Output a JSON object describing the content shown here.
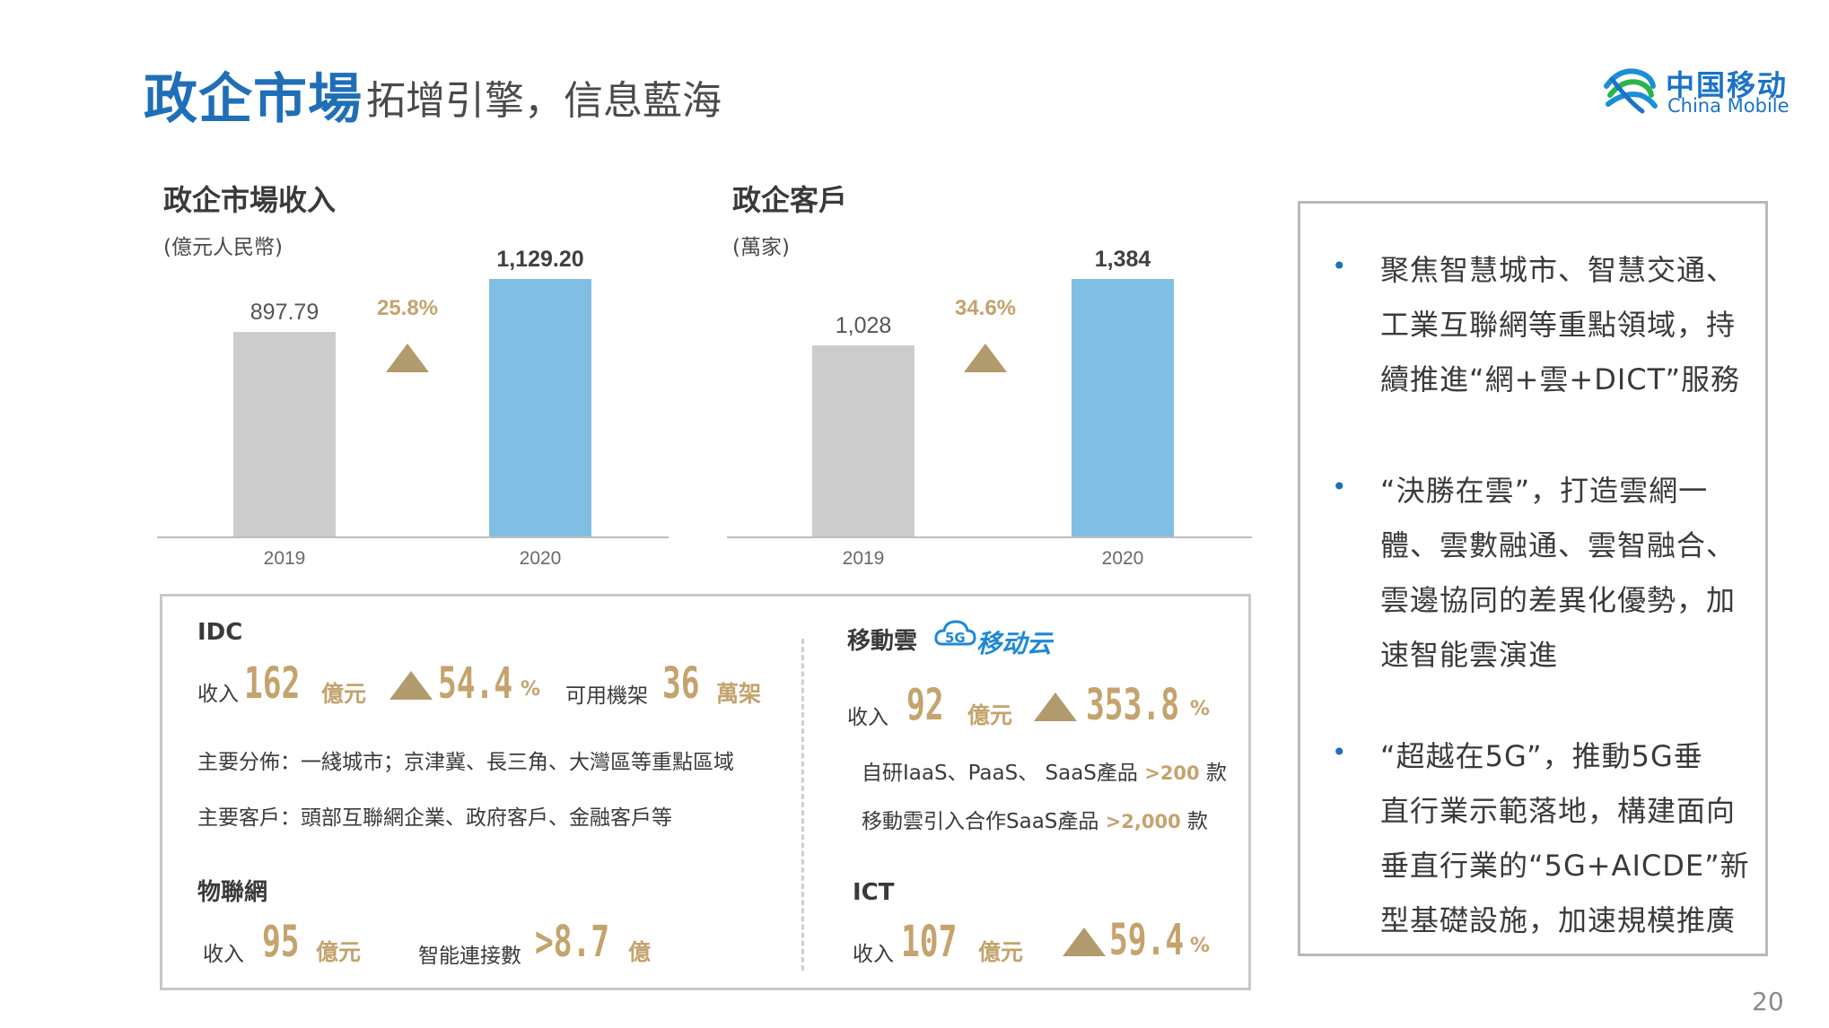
{
  "header": {
    "title_main": "政企市場",
    "title_sub": "拓增引擎，信息藍海",
    "logo_cn": "中国移动",
    "logo_en": "China Mobile"
  },
  "charts": {
    "revenue": {
      "title": "政企市場收入",
      "unit": "(億元人民幣)"
    },
    "customers": {
      "title": "政企客戶",
      "unit": "(萬家)"
    }
  },
  "chart_data": [
    {
      "type": "bar",
      "title": "政企市場收入",
      "ylabel": "(億元人民幣)",
      "categories": [
        "2019",
        "2020"
      ],
      "values": [
        897.79,
        1129.2
      ],
      "value_labels": [
        "897.79",
        "1,129.20"
      ],
      "growth_label": "25.8%",
      "bar_colors": [
        "#cccccc",
        "#80bfe3"
      ],
      "ylim": [
        0,
        1129.2
      ]
    },
    {
      "type": "bar",
      "title": "政企客戶",
      "ylabel": "(萬家)",
      "categories": [
        "2019",
        "2020"
      ],
      "values": [
        1028,
        1384
      ],
      "value_labels": [
        "1,028",
        "1,384"
      ],
      "growth_label": "34.6%",
      "bar_colors": [
        "#cccccc",
        "#80bfe3"
      ],
      "ylim": [
        0,
        1384
      ]
    }
  ],
  "right_panel": {
    "bullets": [
      {
        "lines": [
          "聚焦智慧城市、智慧交通、",
          "工業互聯網等重點領域，持",
          "續推進“網+雲+DICT”服務"
        ]
      },
      {
        "lines": [
          "“決勝在雲”，打造雲網一",
          "體、雲數融通、雲智融合、",
          "雲邊協同的差異化優勢，加",
          "速智能雲演進"
        ]
      },
      {
        "lines": [
          "“超越在5G”，推動5G垂",
          "直行業示範落地，構建面向",
          "垂直行業的“5G+AICDE”新",
          "型基礎設施，加速規模推廣"
        ]
      }
    ]
  },
  "idc": {
    "title": "IDC",
    "income_label": "收入",
    "income_value": "162",
    "income_unit": "億元",
    "growth_value": "54.4",
    "growth_unit": "%",
    "racks_label": "可用機架",
    "racks_value": "36",
    "racks_unit": "萬架",
    "distribution": "主要分佈：一綫城市；京津冀、長三角、大灣區等重點區域",
    "customers": "主要客戶：頭部互聯網企業、政府客戶、金融客戶等"
  },
  "iot": {
    "title": "物聯網",
    "income_label": "收入",
    "income_value": "95",
    "income_unit": "億元",
    "conn_label": "智能連接數",
    "conn_value": ">8.7",
    "conn_unit": "億"
  },
  "cloud": {
    "title": "移動雲",
    "logo_text": "移动云",
    "logo_badge": "5G",
    "income_label": "收入",
    "income_value": "92",
    "income_unit": "億元",
    "growth_value": "353.8",
    "growth_unit": "%",
    "line1_text": "自研IaaS、PaaS、 SaaS產品",
    "line1_value": ">200",
    "line1_unit": "款",
    "line2_text": "移動雲引入合作SaaS產品",
    "line2_value": ">2,000",
    "line2_unit": "款"
  },
  "ict": {
    "title": "ICT",
    "income_label": "收入",
    "income_value": "107",
    "income_unit": "億元",
    "growth_value": "59.4",
    "growth_unit": "%"
  },
  "page_number": "20",
  "colors": {
    "accent": "#1f6fb8",
    "gold": "#c4a36d",
    "bar_gray": "#cccccc",
    "bar_blue": "#80bfe3"
  }
}
